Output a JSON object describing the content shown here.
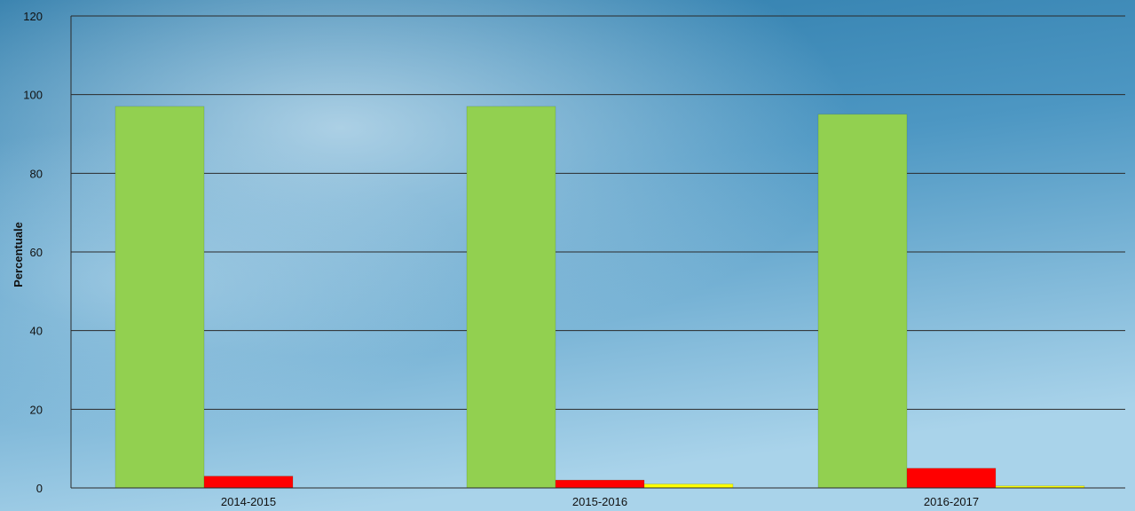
{
  "chart_data": {
    "type": "bar",
    "title": "",
    "xlabel": "",
    "ylabel": "Percentuale",
    "ylim": [
      0,
      120
    ],
    "yticks": [
      0,
      20,
      40,
      60,
      80,
      100,
      120
    ],
    "grid": true,
    "categories": [
      "2014-2015",
      "2015-2016",
      "2016-2017"
    ],
    "series": [
      {
        "color": "#92d050",
        "values": [
          97,
          97,
          95
        ]
      },
      {
        "color": "#ff0000",
        "values": [
          3,
          2,
          5
        ]
      },
      {
        "color": "#ffff00",
        "values": [
          0,
          1,
          0.5
        ]
      }
    ]
  }
}
